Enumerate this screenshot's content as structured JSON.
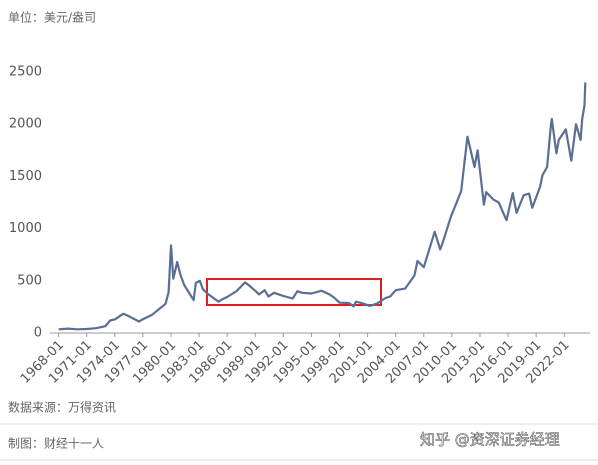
{
  "chart_data": {
    "type": "line",
    "y_label": "单位：美元/盎司",
    "source": "数据来源：万得资讯",
    "credit": "制图：财经十一人",
    "watermark": "知乎 @资深证券经理",
    "x": [
      "1968-01",
      "1969-01",
      "1970-01",
      "1971-01",
      "1972-01",
      "1973-01",
      "1973-07",
      "1974-01",
      "1974-12",
      "1975-06",
      "1976-08",
      "1977-01",
      "1978-01",
      "1978-10",
      "1979-06",
      "1979-10",
      "1980-01",
      "1980-04",
      "1980-09",
      "1981-01",
      "1981-06",
      "1982-06",
      "1982-09",
      "1983-02",
      "1983-06",
      "1984-01",
      "1985-02",
      "1985-06",
      "1986-01",
      "1987-01",
      "1987-12",
      "1988-06",
      "1989-01",
      "1989-06",
      "1990-01",
      "1990-06",
      "1991-01",
      "1992-01",
      "1993-01",
      "1993-07",
      "1994-01",
      "1995-01",
      "1996-02",
      "1996-12",
      "1997-06",
      "1998-01",
      "1999-01",
      "1999-07",
      "1999-10",
      "2000-06",
      "2001-04",
      "2002-01",
      "2002-12",
      "2003-06",
      "2004-01",
      "2005-01",
      "2006-01",
      "2006-05",
      "2007-01",
      "2008-03",
      "2008-10",
      "2009-01",
      "2009-12",
      "2010-06",
      "2011-01",
      "2011-08",
      "2011-09",
      "2012-06",
      "2012-10",
      "2013-06",
      "2013-09",
      "2014-06",
      "2015-01",
      "2015-11",
      "2016-07",
      "2016-12",
      "2017-09",
      "2018-04",
      "2018-08",
      "2019-06",
      "2019-09",
      "2020-03",
      "2020-08",
      "2020-09",
      "2021-03",
      "2021-06",
      "2022-03",
      "2022-10",
      "2023-04",
      "2023-10",
      "2023-12",
      "2024-03",
      "2024-04"
    ],
    "series": [
      {
        "color": "#5b6f95",
        "values": [
          35,
          42,
          35,
          38,
          46,
          65,
          120,
          130,
          185,
          165,
          110,
          132,
          175,
          230,
          280,
          390,
          840,
          520,
          680,
          560,
          460,
          315,
          480,
          500,
          420,
          370,
          300,
          320,
          345,
          400,
          485,
          450,
          405,
          370,
          410,
          350,
          385,
          355,
          330,
          400,
          385,
          378,
          405,
          370,
          340,
          290,
          287,
          255,
          300,
          285,
          260,
          282,
          335,
          350,
          410,
          425,
          550,
          690,
          630,
          970,
          800,
          860,
          1120,
          1230,
          1360,
          1820,
          1880,
          1590,
          1750,
          1230,
          1350,
          1280,
          1250,
          1080,
          1340,
          1150,
          1320,
          1335,
          1200,
          1400,
          1510,
          1590,
          2000,
          2050,
          1720,
          1850,
          1950,
          1650,
          2000,
          1850,
          2050,
          2180,
          2400
        ]
      }
    ],
    "xlim": [
      "1967-02",
      "2024-10"
    ],
    "xticks": [
      "1968-01",
      "1971-01",
      "1974-01",
      "1977-01",
      "1980-01",
      "1983-01",
      "1986-01",
      "1989-01",
      "1992-01",
      "1995-01",
      "1998-01",
      "2001-01",
      "2004-01",
      "2007-01",
      "2010-01",
      "2013-01",
      "2016-01",
      "2019-01",
      "2022-01"
    ],
    "ylim": [
      0,
      2500
    ],
    "yticks": [
      0,
      500,
      1000,
      1500,
      2000,
      2500
    ],
    "grid": false
  }
}
